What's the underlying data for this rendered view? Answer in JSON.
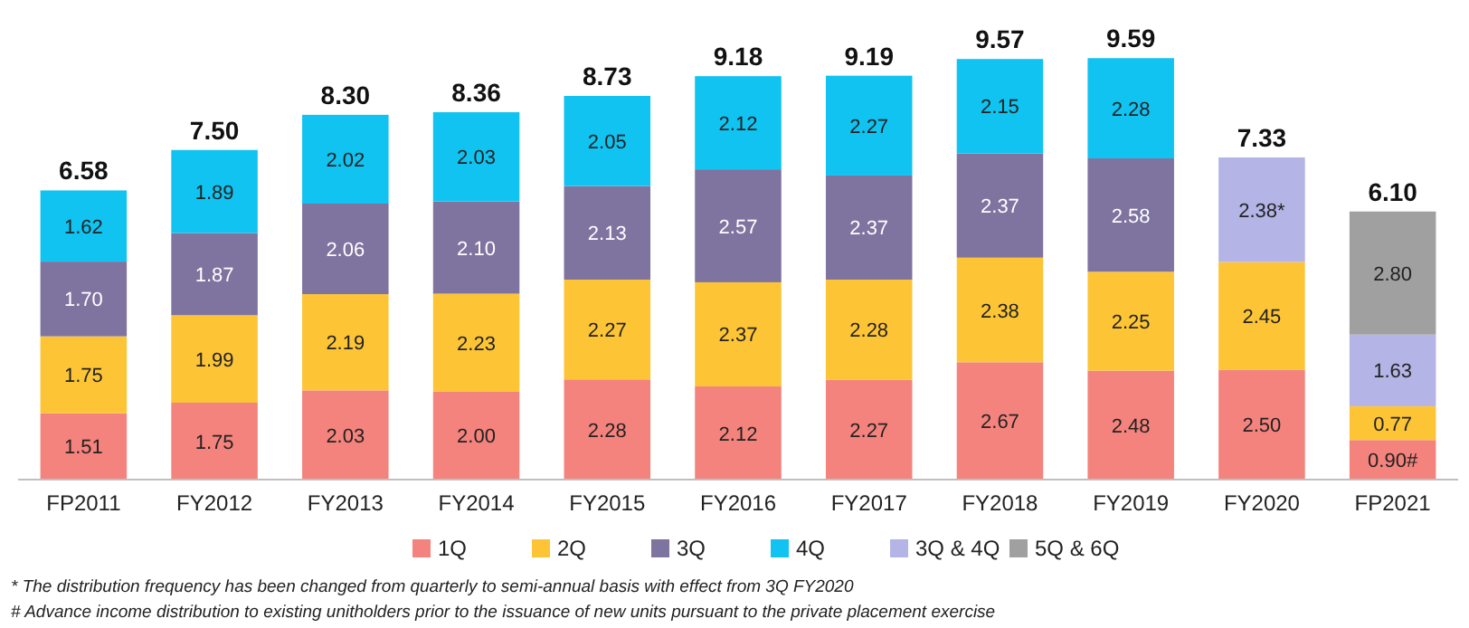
{
  "chart_data": {
    "type": "bar",
    "stacked": true,
    "data_labels": true,
    "legend": "bottom",
    "categories": [
      "FP2011",
      "FY2012",
      "FY2013",
      "FY2014",
      "FY2015",
      "FY2016",
      "FY2017",
      "FY2018",
      "FY2019",
      "FY2020",
      "FP2021"
    ],
    "series": [
      {
        "name": "1Q",
        "color": "#f4837d",
        "values": [
          1.51,
          1.75,
          2.03,
          2.0,
          2.28,
          2.12,
          2.27,
          2.67,
          2.48,
          2.5,
          0.9
        ],
        "value_labels": [
          "1.51",
          "1.75",
          "2.03",
          "2.00",
          "2.28",
          "2.12",
          "2.27",
          "2.67",
          "2.48",
          "2.50",
          "0.90#"
        ]
      },
      {
        "name": "2Q",
        "color": "#fdc536",
        "values": [
          1.75,
          1.99,
          2.19,
          2.23,
          2.27,
          2.37,
          2.28,
          2.38,
          2.25,
          2.45,
          0.77
        ],
        "value_labels": [
          "1.75",
          "1.99",
          "2.19",
          "2.23",
          "2.27",
          "2.37",
          "2.28",
          "2.38",
          "2.25",
          "2.45",
          "0.77"
        ]
      },
      {
        "name": "3Q",
        "color": "#7f739f",
        "values": [
          1.7,
          1.87,
          2.06,
          2.1,
          2.13,
          2.57,
          2.37,
          2.37,
          2.58,
          null,
          null
        ],
        "value_labels": [
          "1.70",
          "1.87",
          "2.06",
          "2.10",
          "2.13",
          "2.57",
          "2.37",
          "2.37",
          "2.58",
          null,
          null
        ]
      },
      {
        "name": "4Q",
        "color": "#10c3f0",
        "values": [
          1.62,
          1.89,
          2.02,
          2.03,
          2.05,
          2.12,
          2.27,
          2.15,
          2.28,
          null,
          null
        ],
        "value_labels": [
          "1.62",
          "1.89",
          "2.02",
          "2.03",
          "2.05",
          "2.12",
          "2.27",
          "2.15",
          "2.28",
          null,
          null
        ]
      },
      {
        "name": "3Q & 4Q",
        "color": "#b4b4e6",
        "values": [
          null,
          null,
          null,
          null,
          null,
          null,
          null,
          null,
          null,
          2.38,
          1.63
        ],
        "value_labels": [
          null,
          null,
          null,
          null,
          null,
          null,
          null,
          null,
          null,
          "2.38*",
          "1.63"
        ]
      },
      {
        "name": "5Q & 6Q",
        "color": "#a0a0a0",
        "values": [
          null,
          null,
          null,
          null,
          null,
          null,
          null,
          null,
          null,
          null,
          2.8
        ],
        "value_labels": [
          null,
          null,
          null,
          null,
          null,
          null,
          null,
          null,
          null,
          null,
          "2.80"
        ]
      }
    ],
    "totals": [
      "6.58",
      "7.50",
      "8.30",
      "8.36",
      "8.73",
      "9.18",
      "9.19",
      "9.57",
      "9.59",
      "7.33",
      "6.10"
    ],
    "annotations": [
      "* The distribution frequency has been changed from quarterly to semi-annual basis with effect from 3Q FY2020",
      "# Advance income distribution to existing unitholders prior to the issuance of new units pursuant to the private placement exercise"
    ]
  }
}
